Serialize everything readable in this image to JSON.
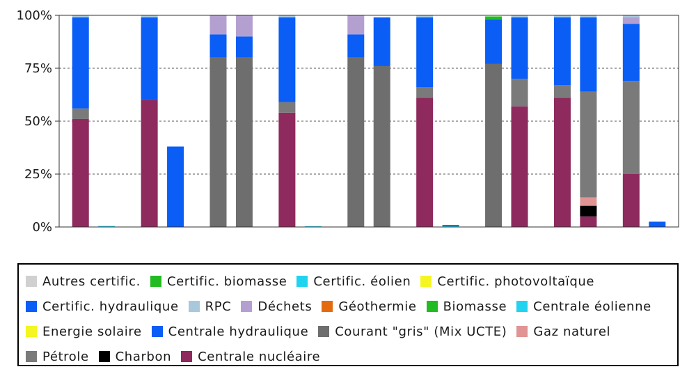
{
  "chart_data": {
    "type": "bar",
    "stacked": true,
    "ylim": [
      0,
      100
    ],
    "yticks": [
      "0%",
      "25%",
      "50%",
      "75%",
      "100%"
    ],
    "grid": true,
    "legend_position": "bottom",
    "bar_groups": [
      [
        {
          "series": "Centrale nucléaire",
          "value": 51
        },
        {
          "series": "Pétrole",
          "value": 5
        },
        {
          "series": "Certific. hydraulique",
          "value": 43
        },
        {
          "series": "RPC",
          "value": 1
        }
      ],
      [
        {
          "series": "Certific. éolien",
          "value": 0.5
        }
      ],
      [
        {
          "series": "Centrale nucléaire",
          "value": 60
        },
        {
          "series": "Certific. hydraulique",
          "value": 39
        },
        {
          "series": "RPC",
          "value": 1
        }
      ],
      [
        {
          "series": "Certific. hydraulique",
          "value": 38
        }
      ],
      [
        {
          "series": "Courant \"gris\" (Mix UCTE)",
          "value": 80
        },
        {
          "series": "Certific. hydraulique",
          "value": 11
        },
        {
          "series": "Déchets",
          "value": 9
        }
      ],
      [
        {
          "series": "Courant \"gris\" (Mix UCTE)",
          "value": 80
        },
        {
          "series": "Certific. hydraulique",
          "value": 10
        },
        {
          "series": "Déchets",
          "value": 10
        }
      ],
      [
        {
          "series": "Centrale nucléaire",
          "value": 54
        },
        {
          "series": "Pétrole",
          "value": 5
        },
        {
          "series": "Certific. hydraulique",
          "value": 40
        },
        {
          "series": "RPC",
          "value": 1
        }
      ],
      [
        {
          "series": "Certific. éolien",
          "value": 0.3
        }
      ],
      [
        {
          "series": "Courant \"gris\" (Mix UCTE)",
          "value": 80
        },
        {
          "series": "Certific. hydraulique",
          "value": 11
        },
        {
          "series": "Déchets",
          "value": 9
        }
      ],
      [
        {
          "series": "Courant \"gris\" (Mix UCTE)",
          "value": 76
        },
        {
          "series": "Certific. hydraulique",
          "value": 23
        }
      ],
      [
        {
          "series": "Centrale nucléaire",
          "value": 61
        },
        {
          "series": "Pétrole",
          "value": 5
        },
        {
          "series": "Certific. hydraulique",
          "value": 33
        },
        {
          "series": "RPC",
          "value": 1
        }
      ],
      [
        {
          "series": "Certific. éolien",
          "value": 0.5
        },
        {
          "series": "Centrale hydraulique",
          "value": 0.5
        }
      ],
      [
        {
          "series": "Courant \"gris\" (Mix UCTE)",
          "value": 77
        },
        {
          "series": "Certific. hydraulique",
          "value": 21
        },
        {
          "series": "Biomasse",
          "value": 1.5
        }
      ],
      [
        {
          "series": "Centrale nucléaire",
          "value": 57
        },
        {
          "series": "Pétrole",
          "value": 13
        },
        {
          "series": "Certific. hydraulique",
          "value": 29
        },
        {
          "series": "RPC",
          "value": 1
        }
      ],
      [
        {
          "series": "Centrale nucléaire",
          "value": 61
        },
        {
          "series": "Pétrole",
          "value": 6
        },
        {
          "series": "Certific. hydraulique",
          "value": 32
        },
        {
          "series": "RPC",
          "value": 1
        }
      ],
      [
        {
          "series": "Centrale nucléaire",
          "value": 5
        },
        {
          "series": "Charbon",
          "value": 5
        },
        {
          "series": "Gaz naturel",
          "value": 4
        },
        {
          "series": "Pétrole",
          "value": 50
        },
        {
          "series": "Certific. hydraulique",
          "value": 35
        },
        {
          "series": "RPC",
          "value": 1
        }
      ],
      [
        {
          "series": "Centrale nucléaire",
          "value": 25
        },
        {
          "series": "Pétrole",
          "value": 44
        },
        {
          "series": "Certific. hydraulique",
          "value": 27
        },
        {
          "series": "Déchets",
          "value": 3
        },
        {
          "series": "RPC",
          "value": 1
        }
      ],
      [
        {
          "series": "Certific. hydraulique",
          "value": 2.5
        }
      ]
    ],
    "series_colors": {
      "Autres certific.": "#d0d0d0",
      "Certific. biomasse": "#22bb22",
      "Certific. éolien": "#22d3f0",
      "Certific. photovoltaïque": "#f5f522",
      "Certific. hydraulique": "#0a5df5",
      "RPC": "#a8c8dc",
      "Déchets": "#b4a0d0",
      "Géothermie": "#e46a10",
      "Biomasse": "#22bb22",
      "Centrale éolienne": "#22d3f0",
      "Energie solaire": "#f5f522",
      "Centrale hydraulique": "#0a5df5",
      "Courant \"gris\" (Mix UCTE)": "#6e6e6e",
      "Gaz naturel": "#e09494",
      "Pétrole": "#7a7a7a",
      "Charbon": "#000000",
      "Centrale nucléaire": "#8e2a5e"
    },
    "legend": [
      [
        {
          "label": "Autres certific.",
          "color": "#d0d0d0"
        },
        {
          "label": "Certific. biomasse",
          "color": "#22bb22"
        },
        {
          "label": "Certific. éolien",
          "color": "#22d3f0"
        },
        {
          "label": "Certific. photovoltaïque",
          "color": "#f5f522"
        }
      ],
      [
        {
          "label": "Certific. hydraulique",
          "color": "#0a5df5"
        },
        {
          "label": "RPC",
          "color": "#a8c8dc"
        },
        {
          "label": "Déchets",
          "color": "#b4a0d0"
        },
        {
          "label": "Géothermie",
          "color": "#e46a10"
        },
        {
          "label": "Biomasse",
          "color": "#22bb22"
        },
        {
          "label": "Centrale éolienne",
          "color": "#22d3f0"
        }
      ],
      [
        {
          "label": "Energie solaire",
          "color": "#f5f522"
        },
        {
          "label": "Centrale hydraulique",
          "color": "#0a5df5"
        },
        {
          "label": "Courant \"gris\" (Mix UCTE)",
          "color": "#6e6e6e"
        },
        {
          "label": "Gaz naturel",
          "color": "#e09494"
        }
      ],
      [
        {
          "label": "Pétrole",
          "color": "#7a7a7a"
        },
        {
          "label": "Charbon",
          "color": "#000000"
        },
        {
          "label": "Centrale nucléaire",
          "color": "#8e2a5e"
        }
      ]
    ]
  }
}
